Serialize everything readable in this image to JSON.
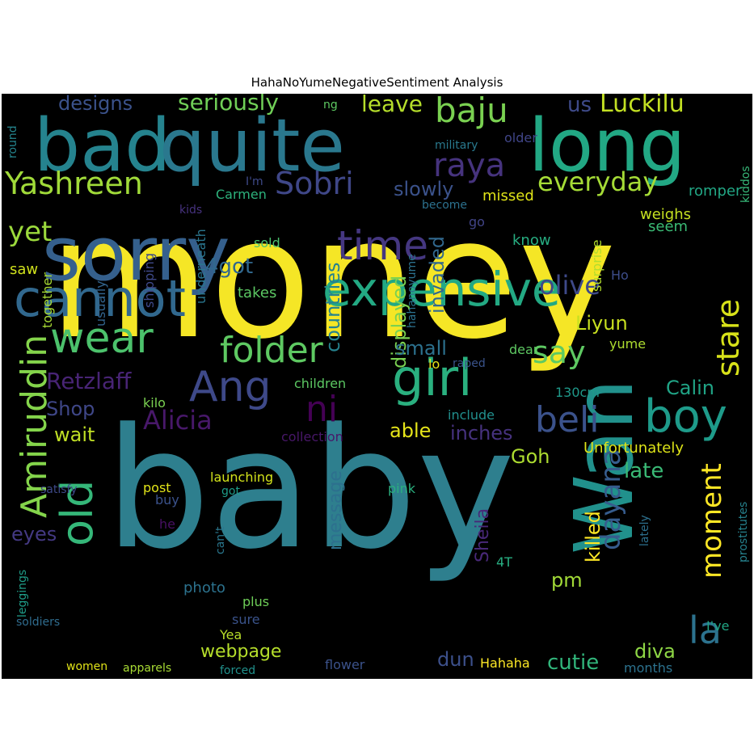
{
  "title": "HahaNoYumeNegativeSentiment Analysis",
  "background_color": "#000000",
  "words": [
    {
      "text": "money",
      "color": "#f5e626"
    },
    {
      "text": "baby",
      "color": "#2e7f8e"
    },
    {
      "text": "bad",
      "color": "#25838e"
    },
    {
      "text": "quite",
      "color": "#2a788e"
    },
    {
      "text": "long",
      "color": "#22a884"
    },
    {
      "text": "sorry",
      "color": "#35608d"
    },
    {
      "text": "Wan",
      "color": "#21918c"
    },
    {
      "text": "cannot",
      "color": "#31688e"
    },
    {
      "text": "expensive",
      "color": "#23a983"
    },
    {
      "text": "time",
      "color": "#453781"
    },
    {
      "text": "girl",
      "color": "#2ab07f"
    },
    {
      "text": "Ang",
      "color": "#3e4989"
    },
    {
      "text": "wear",
      "color": "#4cc26c"
    },
    {
      "text": "folder",
      "color": "#5ec962"
    },
    {
      "text": "old",
      "color": "#35b779"
    },
    {
      "text": "Amiruddin",
      "color": "#84d44b"
    },
    {
      "text": "boy",
      "color": "#1e9b8a"
    },
    {
      "text": "beli",
      "color": "#3b528b"
    },
    {
      "text": "baju",
      "color": "#7ad151"
    },
    {
      "text": "raya",
      "color": "#46337e"
    },
    {
      "text": "Yashreen",
      "color": "#a0da39"
    },
    {
      "text": "Sobri",
      "color": "#3f4788"
    },
    {
      "text": "everyday",
      "color": "#a5db36"
    },
    {
      "text": "say",
      "color": "#5ec962"
    },
    {
      "text": "stare",
      "color": "#d8e219"
    },
    {
      "text": "moment",
      "color": "#fde725"
    },
    {
      "text": "dayana",
      "color": "#365c8d"
    },
    {
      "text": "la",
      "color": "#2c728e"
    },
    {
      "text": "ni",
      "color": "#440154"
    },
    {
      "text": "Alicia",
      "color": "#48186a"
    },
    {
      "text": "Retzlaff",
      "color": "#482475"
    },
    {
      "text": "webpage",
      "color": "#b5de2b"
    },
    {
      "text": "countries",
      "color": "#26828e"
    },
    {
      "text": "displayed",
      "color": "#7ad151"
    },
    {
      "text": "invaded",
      "color": "#31688e"
    },
    {
      "text": "olive",
      "color": "#3e4989"
    },
    {
      "text": "Luckilu",
      "color": "#c2df23"
    },
    {
      "text": "designs",
      "color": "#3b528b"
    },
    {
      "text": "seriously",
      "color": "#70cf57"
    },
    {
      "text": "leave",
      "color": "#b5de2b"
    },
    {
      "text": "us",
      "color": "#3e4a89"
    },
    {
      "text": "yet",
      "color": "#9bd93c"
    },
    {
      "text": "4got",
      "color": "#31688e"
    },
    {
      "text": "slowly",
      "color": "#3b528b"
    },
    {
      "text": "Liyun",
      "color": "#c8e020"
    },
    {
      "text": "small",
      "color": "#2c718e"
    },
    {
      "text": "Shop",
      "color": "#3f4788"
    },
    {
      "text": "wait",
      "color": "#c0df25"
    },
    {
      "text": "inches",
      "color": "#46327e"
    },
    {
      "text": "able",
      "color": "#e5e419"
    },
    {
      "text": "Goh",
      "color": "#addc30"
    },
    {
      "text": "Calin",
      "color": "#20a486"
    },
    {
      "text": "late",
      "color": "#3aba76"
    },
    {
      "text": "killed",
      "color": "#fde725"
    },
    {
      "text": "message",
      "color": "#2d708e"
    },
    {
      "text": "Sheila",
      "color": "#482878"
    },
    {
      "text": "eyes",
      "color": "#443983"
    },
    {
      "text": "pm",
      "color": "#a2da37"
    },
    {
      "text": "diva",
      "color": "#8ed645"
    },
    {
      "text": "cutie",
      "color": "#31b57b"
    },
    {
      "text": "dun",
      "color": "#3c508b"
    },
    {
      "text": "Unfortunately",
      "color": "#dde318"
    },
    {
      "text": "missed",
      "color": "#dfe318"
    },
    {
      "text": "romper",
      "color": "#22a785"
    },
    {
      "text": "weighs",
      "color": "#c5e021"
    },
    {
      "text": "seem",
      "color": "#3bbb75"
    },
    {
      "text": "surprise",
      "color": "#b2dd2d"
    },
    {
      "text": "know",
      "color": "#27ad81"
    },
    {
      "text": "Carmen",
      "color": "#2db27d"
    },
    {
      "text": "sold",
      "color": "#4ac16d"
    },
    {
      "text": "takes",
      "color": "#5cc863"
    },
    {
      "text": "saw",
      "color": "#d0e11c"
    },
    {
      "text": "underneath",
      "color": "#2a768e"
    },
    {
      "text": "shipping",
      "color": "#3e4989"
    },
    {
      "text": "usually",
      "color": "#32648e"
    },
    {
      "text": "together",
      "color": "#a8db34"
    },
    {
      "text": "hahanoyume",
      "color": "#2c718e"
    },
    {
      "text": "Ho",
      "color": "#3d4d8a"
    },
    {
      "text": "yume",
      "color": "#addc30"
    },
    {
      "text": "dear",
      "color": "#5ec962"
    },
    {
      "text": "raped",
      "color": "#3a538b"
    },
    {
      "text": "lo",
      "color": "#e7e419"
    },
    {
      "text": "children",
      "color": "#5cc863"
    },
    {
      "text": "130cm",
      "color": "#1f998a"
    },
    {
      "text": "include",
      "color": "#218f8d"
    },
    {
      "text": "collection",
      "color": "#481769"
    },
    {
      "text": "kilo",
      "color": "#7ad151"
    },
    {
      "text": "launching",
      "color": "#d2e21b"
    },
    {
      "text": "post",
      "color": "#e2e418"
    },
    {
      "text": "got",
      "color": "#1e9c89"
    },
    {
      "text": "buy",
      "color": "#3b528b"
    },
    {
      "text": "he",
      "color": "#471063"
    },
    {
      "text": "can't",
      "color": "#2a778e"
    },
    {
      "text": "pink",
      "color": "#2ab07f"
    },
    {
      "text": "4T",
      "color": "#27ad81"
    },
    {
      "text": "photo",
      "color": "#2c728e"
    },
    {
      "text": "plus",
      "color": "#6ece58"
    },
    {
      "text": "sure",
      "color": "#3a538b"
    },
    {
      "text": "Yea",
      "color": "#b8de29"
    },
    {
      "text": "flower",
      "color": "#3b528b"
    },
    {
      "text": "forced",
      "color": "#21918c"
    },
    {
      "text": "Hahaha",
      "color": "#fde725"
    },
    {
      "text": "months",
      "color": "#2c728e"
    },
    {
      "text": "lately",
      "color": "#2d708e"
    },
    {
      "text": "I've",
      "color": "#21a685"
    },
    {
      "text": "prostitutes",
      "color": "#26828e"
    },
    {
      "text": "leggings",
      "color": "#1f9e89"
    },
    {
      "text": "soldiers",
      "color": "#2f6c8e"
    },
    {
      "text": "satisfy",
      "color": "#3e4989"
    },
    {
      "text": "women",
      "color": "#e0e318"
    },
    {
      "text": "apparels",
      "color": "#a8db34"
    },
    {
      "text": "round",
      "color": "#25858e"
    },
    {
      "text": "military",
      "color": "#29798e"
    },
    {
      "text": "older",
      "color": "#404588"
    },
    {
      "text": "kiddos",
      "color": "#37b878"
    },
    {
      "text": "ng",
      "color": "#5ec962"
    },
    {
      "text": "I'm",
      "color": "#3e4a89"
    },
    {
      "text": "kids",
      "color": "#46327e"
    },
    {
      "text": "become",
      "color": "#2c718e"
    },
    {
      "text": "go",
      "color": "#414487"
    }
  ]
}
